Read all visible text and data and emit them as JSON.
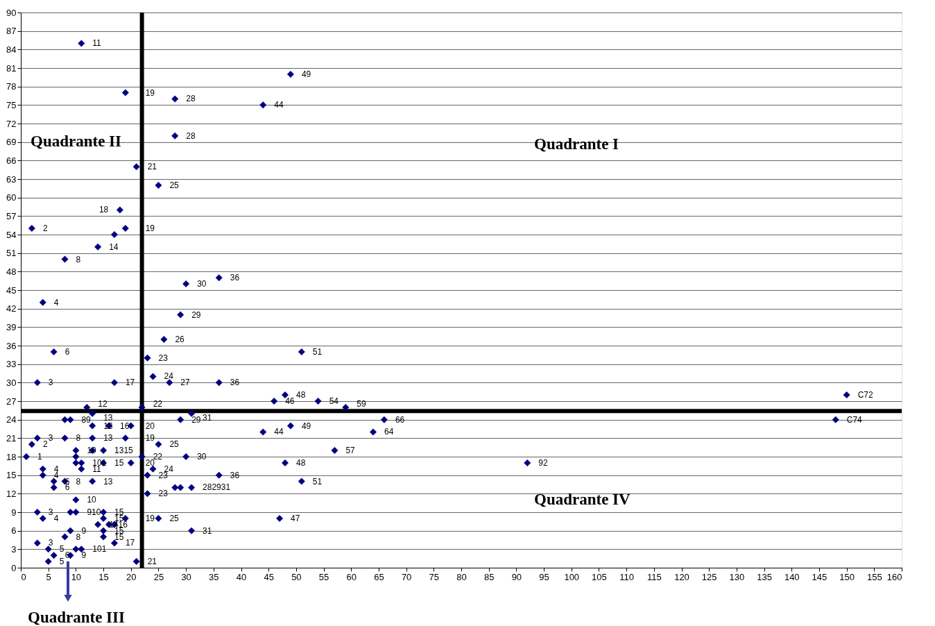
{
  "chart_data": {
    "type": "scatter",
    "marker": "diamond",
    "grid": "y",
    "xlim": [
      0,
      160
    ],
    "xticks": [
      0,
      5,
      10,
      15,
      20,
      25,
      30,
      35,
      40,
      45,
      50,
      55,
      60,
      65,
      70,
      75,
      80,
      85,
      90,
      95,
      100,
      105,
      110,
      115,
      120,
      125,
      130,
      135,
      140,
      145,
      150,
      155,
      160
    ],
    "ylim": [
      0,
      90
    ],
    "yticks": [
      0,
      3,
      6,
      9,
      12,
      15,
      18,
      21,
      24,
      27,
      30,
      33,
      36,
      39,
      42,
      45,
      48,
      51,
      54,
      57,
      60,
      63,
      66,
      69,
      72,
      75,
      78,
      81,
      84,
      87,
      90
    ],
    "series": [
      {
        "color": "#000080",
        "x": [
          11,
          19,
          28,
          49,
          44,
          28,
          21,
          25,
          18,
          2,
          19,
          17,
          14,
          8,
          4,
          36,
          30,
          29,
          26,
          6,
          51,
          23,
          24,
          3,
          17,
          27,
          36,
          48,
          46,
          54,
          59,
          150,
          148,
          66,
          64,
          49,
          44,
          57,
          48,
          36,
          51,
          47,
          92,
          22,
          31,
          29,
          12,
          13,
          8,
          9,
          13,
          16,
          20,
          3,
          2,
          8,
          13,
          19,
          1,
          25,
          22,
          30,
          10,
          13,
          15,
          10,
          10,
          11,
          11,
          15,
          20,
          24,
          23,
          4,
          4,
          6,
          6,
          8,
          13,
          10,
          28,
          29,
          31,
          23,
          3,
          4,
          9,
          10,
          15,
          15,
          14,
          15,
          15,
          17,
          16,
          17,
          19,
          17,
          25,
          31,
          21,
          3,
          5,
          6,
          5,
          9,
          8,
          10,
          11,
          9
        ],
        "values": [
          85,
          77,
          76,
          80,
          75,
          70,
          65,
          62,
          58,
          55,
          55,
          54,
          52,
          50,
          43,
          47,
          46,
          41,
          37,
          35,
          35,
          34,
          31,
          30,
          30,
          30,
          30,
          28,
          27,
          27,
          26,
          28,
          24,
          24,
          22,
          23,
          22,
          19,
          17,
          15,
          14,
          8,
          17,
          26,
          25,
          24,
          26,
          25,
          24,
          24,
          23,
          23,
          23,
          21,
          20,
          21,
          21,
          21,
          18,
          20,
          18,
          18,
          19,
          19,
          19,
          18,
          17,
          17,
          16,
          17,
          17,
          16,
          15,
          16,
          15,
          14,
          13,
          14,
          14,
          11,
          13,
          13,
          13,
          12,
          9,
          8,
          9,
          9,
          9,
          8,
          7,
          6,
          5,
          7,
          7,
          4,
          8,
          7,
          8,
          6,
          1,
          4,
          3,
          2,
          1,
          6,
          5,
          3,
          3,
          2
        ]
      }
    ],
    "ref_lines": [
      {
        "axis": "x",
        "value": 22,
        "color": "#000000"
      },
      {
        "axis": "y",
        "value": 25.4,
        "color": "#000000"
      }
    ],
    "annotations": [
      "Quadrante I",
      "Quadrante II",
      "Quadrante III",
      "Quadrante IV",
      {
        "text": "11",
        "x": 11,
        "y": 85
      },
      {
        "text": "19",
        "x": 19,
        "y": 77
      },
      {
        "text": "28",
        "x": 28,
        "y": 76
      },
      {
        "text": "49",
        "x": 49,
        "y": 80
      },
      {
        "text": "44",
        "x": 44,
        "y": 75
      },
      {
        "text": "28",
        "x": 28,
        "y": 70
      },
      {
        "text": "21",
        "x": 21,
        "y": 65
      },
      {
        "text": "25",
        "x": 25,
        "y": 62
      },
      {
        "text": "18",
        "x": 18,
        "y": 58
      },
      {
        "text": "2",
        "x": 2,
        "y": 55
      },
      {
        "text": "19",
        "x": 19,
        "y": 55
      },
      {
        "text": "14",
        "x": 14,
        "y": 52
      },
      {
        "text": "8",
        "x": 8,
        "y": 50
      },
      {
        "text": "4",
        "x": 4,
        "y": 43
      },
      {
        "text": "36",
        "x": 36,
        "y": 47
      },
      {
        "text": "30",
        "x": 30,
        "y": 46
      },
      {
        "text": "29",
        "x": 29,
        "y": 41
      },
      {
        "text": "26",
        "x": 26,
        "y": 37
      },
      {
        "text": "6",
        "x": 6,
        "y": 35
      },
      {
        "text": "51",
        "x": 51,
        "y": 35
      },
      {
        "text": "23",
        "x": 23,
        "y": 34
      },
      {
        "text": "24",
        "x": 24,
        "y": 31
      },
      {
        "text": "3",
        "x": 3,
        "y": 30
      },
      {
        "text": "17",
        "x": 17,
        "y": 30
      },
      {
        "text": "27",
        "x": 27,
        "y": 30
      },
      {
        "text": "36",
        "x": 36,
        "y": 30
      },
      {
        "text": "48",
        "x": 48,
        "y": 28
      },
      {
        "text": "46",
        "x": 46,
        "y": 27
      },
      {
        "text": "54",
        "x": 54,
        "y": 27
      },
      {
        "text": "59",
        "x": 59,
        "y": 26
      },
      {
        "text": "C72",
        "x": 150,
        "y": 28
      },
      {
        "text": "C74",
        "x": 148,
        "y": 24
      },
      {
        "text": "66",
        "x": 66,
        "y": 24
      },
      {
        "text": "64",
        "x": 64,
        "y": 22
      },
      {
        "text": "49",
        "x": 49,
        "y": 23
      },
      {
        "text": "44",
        "x": 44,
        "y": 22
      },
      {
        "text": "57",
        "x": 57,
        "y": 19
      },
      {
        "text": "48",
        "x": 48,
        "y": 17
      },
      {
        "text": "36",
        "x": 36,
        "y": 15
      },
      {
        "text": "51",
        "x": 51,
        "y": 14
      },
      {
        "text": "47",
        "x": 47,
        "y": 8
      },
      {
        "text": "92",
        "x": 92,
        "y": 17
      },
      {
        "text": "22",
        "x": 22,
        "y": 26
      },
      {
        "text": "31",
        "x": 31,
        "y": 25
      },
      {
        "text": "29",
        "x": 29,
        "y": 24
      },
      {
        "text": "12",
        "x": 12,
        "y": 26
      },
      {
        "text": "13",
        "x": 13,
        "y": 25
      },
      {
        "text": "89",
        "x": 9,
        "y": 24
      },
      {
        "text": "13",
        "x": 13,
        "y": 23
      },
      {
        "text": "16",
        "x": 16,
        "y": 23
      },
      {
        "text": "20",
        "x": 20,
        "y": 23
      },
      {
        "text": "3",
        "x": 3,
        "y": 21
      },
      {
        "text": "2",
        "x": 2,
        "y": 20
      },
      {
        "text": "8",
        "x": 8,
        "y": 21
      },
      {
        "text": "13",
        "x": 13,
        "y": 21
      },
      {
        "text": "19",
        "x": 19,
        "y": 21
      },
      {
        "text": "1",
        "x": 1,
        "y": 18
      },
      {
        "text": "25",
        "x": 25,
        "y": 20
      },
      {
        "text": "22",
        "x": 22,
        "y": 18
      },
      {
        "text": "30",
        "x": 30,
        "y": 18
      },
      {
        "text": "10",
        "x": 10,
        "y": 19
      },
      {
        "text": "1315",
        "x": 15,
        "y": 19
      },
      {
        "text": "101",
        "x": 11,
        "y": 17
      },
      {
        "text": "11",
        "x": 11,
        "y": 16
      },
      {
        "text": "15",
        "x": 15,
        "y": 17
      },
      {
        "text": "20",
        "x": 20,
        "y": 17
      },
      {
        "text": "24",
        "x": 24,
        "y": 16
      },
      {
        "text": "23",
        "x": 23,
        "y": 15
      },
      {
        "text": "4",
        "x": 4,
        "y": 16
      },
      {
        "text": "4",
        "x": 4,
        "y": 15
      },
      {
        "text": "6",
        "x": 6,
        "y": 14
      },
      {
        "text": "6",
        "x": 6,
        "y": 13
      },
      {
        "text": "8",
        "x": 8,
        "y": 14
      },
      {
        "text": "13",
        "x": 13,
        "y": 14
      },
      {
        "text": "10",
        "x": 10,
        "y": 11
      },
      {
        "text": "282931",
        "x": 31,
        "y": 13
      },
      {
        "text": "23",
        "x": 23,
        "y": 12
      },
      {
        "text": "3",
        "x": 3,
        "y": 9
      },
      {
        "text": "4",
        "x": 4,
        "y": 8
      },
      {
        "text": "910",
        "x": 10,
        "y": 9
      },
      {
        "text": "15",
        "x": 15,
        "y": 9
      },
      {
        "text": "15",
        "x": 15,
        "y": 8
      },
      {
        "text": "1416",
        "x": 14,
        "y": 7
      },
      {
        "text": "15",
        "x": 15,
        "y": 6
      },
      {
        "text": "15",
        "x": 15,
        "y": 5
      },
      {
        "text": "17",
        "x": 17,
        "y": 4
      },
      {
        "text": "19",
        "x": 19,
        "y": 8
      },
      {
        "text": "25",
        "x": 25,
        "y": 8
      },
      {
        "text": "31",
        "x": 31,
        "y": 6
      },
      {
        "text": "21",
        "x": 21,
        "y": 1
      },
      {
        "text": "3",
        "x": 3,
        "y": 4
      },
      {
        "text": "5",
        "x": 5,
        "y": 3
      },
      {
        "text": "6",
        "x": 6,
        "y": 2
      },
      {
        "text": "5",
        "x": 5,
        "y": 1
      },
      {
        "text": "9",
        "x": 9,
        "y": 6
      },
      {
        "text": "8",
        "x": 8,
        "y": 5
      },
      {
        "text": "101",
        "x": 11,
        "y": 3
      },
      {
        "text": "9",
        "x": 9,
        "y": 2
      }
    ]
  }
}
